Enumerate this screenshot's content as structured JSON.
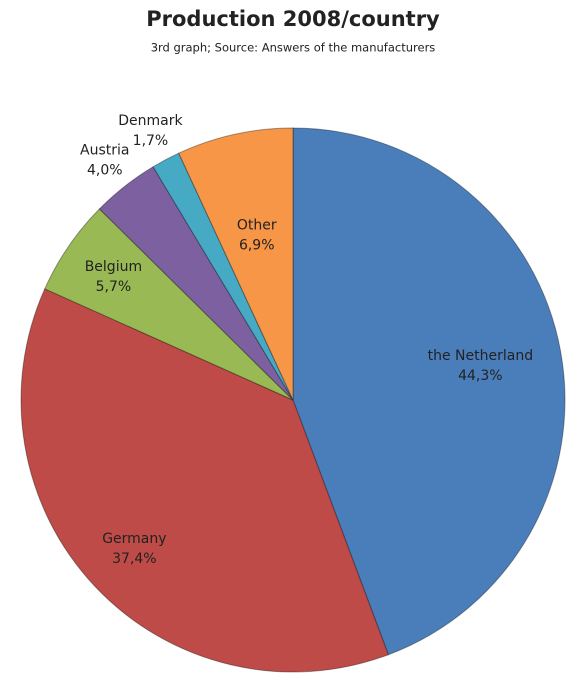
{
  "chart_data": {
    "type": "pie",
    "title": "Production 2008/country",
    "subtitle": "3rd graph; Source: Answers of the manufacturers",
    "categories": [
      "the Netherland",
      "Germany",
      "Belgium",
      "Austria",
      "Denmark",
      "Other"
    ],
    "values": [
      44.3,
      37.4,
      5.7,
      4.0,
      1.7,
      6.9
    ],
    "value_labels": [
      "44,3%",
      "37,4%",
      "5,7%",
      "4,0%",
      "1,7%",
      "6,9%"
    ],
    "colors": [
      "#4a7ebb",
      "#be4b48",
      "#98b954",
      "#7d60a0",
      "#46aac5",
      "#f79646"
    ]
  }
}
